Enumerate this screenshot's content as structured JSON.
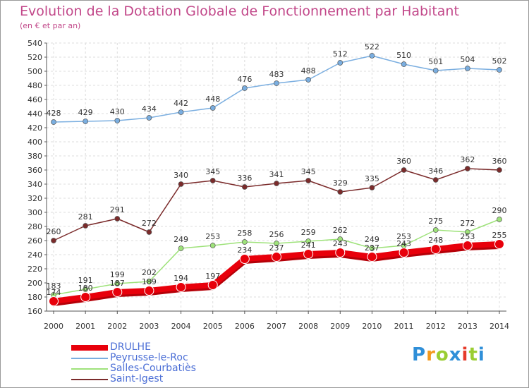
{
  "chart_data": {
    "type": "line",
    "title": "Evolution de la Dotation Globale de Fonctionnement par Habitant",
    "subtitle": "(en € et par an)",
    "x": [
      "2000",
      "2001",
      "2002",
      "2003",
      "2004",
      "2005",
      "2006",
      "2007",
      "2008",
      "2009",
      "2010",
      "2011",
      "2012",
      "2013",
      "2014"
    ],
    "ylim": [
      160,
      540
    ],
    "yticks": [
      160,
      180,
      200,
      220,
      240,
      260,
      280,
      300,
      320,
      340,
      360,
      380,
      400,
      420,
      440,
      460,
      480,
      500,
      520,
      540
    ],
    "grid": true,
    "legend_position": "bottom-left",
    "series": [
      {
        "name": "DRULHE",
        "color": "#e8000b",
        "values": [
          174,
          180,
          187,
          189,
          194,
          197,
          234,
          237,
          241,
          243,
          237,
          243,
          248,
          253,
          255
        ]
      },
      {
        "name": "Peyrusse-le-Roc",
        "color": "#7aaee0",
        "values": [
          428,
          429,
          430,
          434,
          442,
          448,
          476,
          483,
          488,
          512,
          522,
          510,
          501,
          504,
          502
        ]
      },
      {
        "name": "Salles-Courbatiès",
        "color": "#9ee27a",
        "values": [
          183,
          191,
          199,
          202,
          249,
          253,
          258,
          256,
          259,
          262,
          249,
          253,
          275,
          272,
          290
        ]
      },
      {
        "name": "Saint-Igest",
        "color": "#7b2b2b",
        "values": [
          260,
          281,
          291,
          272,
          340,
          345,
          336,
          341,
          345,
          329,
          335,
          360,
          346,
          362,
          360
        ]
      }
    ]
  },
  "logo": {
    "text": "Proxiti",
    "colors": [
      "#2f8fd8",
      "#f39a1e",
      "#9acd32",
      "#2f8fd8",
      "#e63a2a",
      "#9acd32",
      "#2f8fd8"
    ]
  }
}
